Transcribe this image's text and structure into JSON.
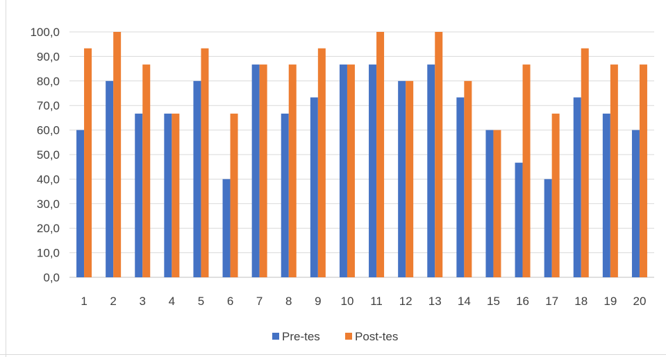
{
  "chart_data": {
    "type": "bar",
    "categories": [
      "1",
      "2",
      "3",
      "4",
      "5",
      "6",
      "7",
      "8",
      "9",
      "10",
      "11",
      "12",
      "13",
      "14",
      "15",
      "16",
      "17",
      "18",
      "19",
      "20"
    ],
    "series": [
      {
        "name": "Pre-tes",
        "color": "#4472c4",
        "values": [
          60.0,
          80.0,
          66.7,
          66.7,
          80.0,
          40.0,
          86.7,
          66.7,
          73.3,
          86.7,
          86.7,
          80.0,
          86.7,
          73.3,
          60.0,
          46.7,
          40.0,
          73.3,
          66.7,
          60.0
        ]
      },
      {
        "name": "Post-tes",
        "color": "#ed7d31",
        "values": [
          93.3,
          100.0,
          86.7,
          66.7,
          93.3,
          66.7,
          86.7,
          86.7,
          93.3,
          86.7,
          100.0,
          80.0,
          100.0,
          80.0,
          60.0,
          86.7,
          66.7,
          93.3,
          86.7,
          86.7
        ]
      }
    ],
    "yticks": [
      "0,0",
      "10,0",
      "20,0",
      "30,0",
      "40,0",
      "50,0",
      "60,0",
      "70,0",
      "80,0",
      "90,0",
      "100,0"
    ],
    "ylim": [
      0,
      100
    ],
    "grid": true,
    "legend": "bottom-center",
    "title": "",
    "xlabel": "",
    "ylabel": ""
  }
}
